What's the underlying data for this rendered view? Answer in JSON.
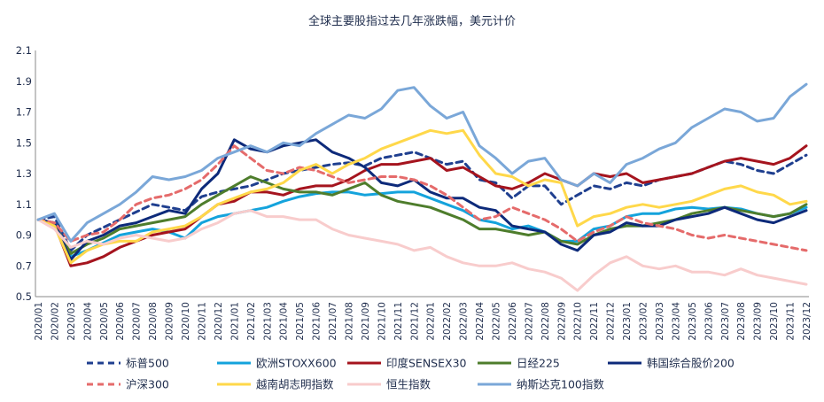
{
  "chart_data": {
    "type": "line",
    "title": "全球主要股指过去几年涨跌幅，美元计价",
    "ylim": [
      0.5,
      2.1
    ],
    "yticks": [
      "0.5",
      "0.7",
      "0.9",
      "1.1",
      "1.3",
      "1.5",
      "1.7",
      "1.9",
      "2.1"
    ],
    "ytick_values": [
      0.5,
      0.7,
      0.9,
      1.1,
      1.3,
      1.5,
      1.7,
      1.9,
      2.1
    ],
    "categories": [
      "2020/01",
      "2020/02",
      "2020/03",
      "2020/04",
      "2020/05",
      "2020/06",
      "2020/07",
      "2020/08",
      "2020/09",
      "2020/10",
      "2020/11",
      "2020/12",
      "2021/01",
      "2021/02",
      "2021/03",
      "2021/04",
      "2021/05",
      "2021/06",
      "2021/07",
      "2021/08",
      "2021/09",
      "2021/10",
      "2021/11",
      "2021/12",
      "2022/01",
      "2022/02",
      "2022/03",
      "2022/04",
      "2022/05",
      "2022/06",
      "2022/07",
      "2022/08",
      "2022/09",
      "2022/10",
      "2022/11",
      "2022/12",
      "2023/01",
      "2023/02",
      "2023/03",
      "2023/04",
      "2023/05",
      "2023/06",
      "2023/07",
      "2023/08",
      "2023/09",
      "2023/10",
      "2023/11",
      "2023/12"
    ],
    "grid": false,
    "legend_position": "bottom",
    "series": [
      {
        "name": "标普500",
        "color": "#1f3f8f",
        "dash": true,
        "values": [
          1.0,
          1.02,
          0.8,
          0.9,
          0.95,
          1.0,
          1.05,
          1.1,
          1.08,
          1.06,
          1.15,
          1.18,
          1.2,
          1.22,
          1.26,
          1.3,
          1.32,
          1.34,
          1.36,
          1.37,
          1.35,
          1.4,
          1.42,
          1.44,
          1.4,
          1.36,
          1.38,
          1.26,
          1.24,
          1.14,
          1.22,
          1.22,
          1.1,
          1.16,
          1.22,
          1.2,
          1.24,
          1.22,
          1.26,
          1.28,
          1.3,
          1.34,
          1.38,
          1.36,
          1.32,
          1.3,
          1.36,
          1.42
        ]
      },
      {
        "name": "欧洲STOXX600",
        "color": "#14a3dc",
        "dash": false,
        "values": [
          1.0,
          0.98,
          0.76,
          0.8,
          0.85,
          0.9,
          0.92,
          0.94,
          0.92,
          0.88,
          0.98,
          1.02,
          1.04,
          1.06,
          1.08,
          1.12,
          1.15,
          1.17,
          1.18,
          1.18,
          1.16,
          1.17,
          1.18,
          1.18,
          1.14,
          1.1,
          1.06,
          1.0,
          0.98,
          0.94,
          0.96,
          0.92,
          0.86,
          0.86,
          0.94,
          0.96,
          1.02,
          1.04,
          1.04,
          1.07,
          1.08,
          1.07,
          1.08,
          1.07,
          1.04,
          1.02,
          1.04,
          1.08
        ]
      },
      {
        "name": "印度SENSEX30",
        "color": "#a5141e",
        "dash": false,
        "values": [
          1.0,
          0.97,
          0.7,
          0.72,
          0.76,
          0.82,
          0.86,
          0.9,
          0.92,
          0.94,
          1.02,
          1.1,
          1.12,
          1.18,
          1.18,
          1.16,
          1.2,
          1.22,
          1.22,
          1.26,
          1.32,
          1.36,
          1.36,
          1.38,
          1.4,
          1.32,
          1.34,
          1.28,
          1.22,
          1.2,
          1.24,
          1.3,
          1.26,
          1.22,
          1.3,
          1.28,
          1.3,
          1.24,
          1.26,
          1.28,
          1.3,
          1.34,
          1.38,
          1.4,
          1.38,
          1.36,
          1.4,
          1.48
        ]
      },
      {
        "name": "日经225",
        "color": "#4e7d2c",
        "dash": false,
        "values": [
          1.0,
          0.97,
          0.78,
          0.84,
          0.88,
          0.94,
          0.96,
          0.98,
          1.0,
          1.02,
          1.1,
          1.16,
          1.22,
          1.28,
          1.24,
          1.2,
          1.18,
          1.18,
          1.16,
          1.2,
          1.24,
          1.16,
          1.12,
          1.1,
          1.08,
          1.04,
          1.0,
          0.94,
          0.94,
          0.92,
          0.9,
          0.92,
          0.86,
          0.84,
          0.9,
          0.94,
          0.96,
          0.96,
          0.98,
          1.0,
          1.04,
          1.06,
          1.08,
          1.06,
          1.04,
          1.02,
          1.04,
          1.1
        ]
      },
      {
        "name": "韩国综合股价200",
        "color": "#0d2a7a",
        "dash": false,
        "values": [
          1.0,
          0.98,
          0.74,
          0.86,
          0.9,
          0.96,
          0.98,
          1.02,
          1.06,
          1.04,
          1.2,
          1.3,
          1.52,
          1.46,
          1.44,
          1.48,
          1.5,
          1.52,
          1.44,
          1.4,
          1.34,
          1.24,
          1.22,
          1.26,
          1.18,
          1.14,
          1.14,
          1.08,
          1.06,
          0.96,
          0.94,
          0.92,
          0.84,
          0.8,
          0.9,
          0.92,
          0.98,
          0.96,
          0.96,
          1.0,
          1.02,
          1.04,
          1.08,
          1.04,
          1.0,
          0.98,
          1.02,
          1.06
        ]
      },
      {
        "name": "沪深300",
        "color": "#e56b6b",
        "dash": true,
        "values": [
          1.0,
          0.98,
          0.86,
          0.9,
          0.92,
          1.0,
          1.1,
          1.14,
          1.16,
          1.2,
          1.26,
          1.36,
          1.48,
          1.4,
          1.32,
          1.3,
          1.34,
          1.32,
          1.28,
          1.24,
          1.26,
          1.28,
          1.28,
          1.26,
          1.22,
          1.16,
          1.08,
          1.0,
          1.02,
          1.08,
          1.04,
          1.0,
          0.94,
          0.86,
          0.92,
          0.96,
          1.02,
          0.98,
          0.96,
          0.94,
          0.9,
          0.88,
          0.9,
          0.88,
          0.86,
          0.84,
          0.82,
          0.8
        ]
      },
      {
        "name": "越南胡志明指数",
        "color": "#ffd84a",
        "dash": false,
        "values": [
          1.0,
          0.96,
          0.72,
          0.8,
          0.84,
          0.86,
          0.86,
          0.92,
          0.94,
          0.96,
          1.02,
          1.1,
          1.14,
          1.18,
          1.2,
          1.24,
          1.32,
          1.36,
          1.3,
          1.36,
          1.4,
          1.46,
          1.5,
          1.54,
          1.58,
          1.56,
          1.58,
          1.42,
          1.3,
          1.28,
          1.22,
          1.26,
          1.24,
          0.96,
          1.02,
          1.04,
          1.08,
          1.1,
          1.08,
          1.1,
          1.12,
          1.16,
          1.2,
          1.22,
          1.18,
          1.16,
          1.1,
          1.12
        ]
      },
      {
        "name": "恒生指数",
        "color": "#f8cccc",
        "dash": false,
        "values": [
          1.0,
          0.94,
          0.82,
          0.86,
          0.84,
          0.88,
          0.9,
          0.88,
          0.86,
          0.88,
          0.94,
          0.98,
          1.04,
          1.06,
          1.02,
          1.02,
          1.0,
          1.0,
          0.94,
          0.9,
          0.88,
          0.86,
          0.84,
          0.8,
          0.82,
          0.76,
          0.72,
          0.7,
          0.7,
          0.72,
          0.68,
          0.66,
          0.62,
          0.54,
          0.64,
          0.72,
          0.76,
          0.7,
          0.68,
          0.7,
          0.66,
          0.66,
          0.64,
          0.68,
          0.64,
          0.62,
          0.6,
          0.58
        ]
      },
      {
        "name": "纳斯达克100指数",
        "color": "#7aa7d8",
        "dash": false,
        "values": [
          1.0,
          1.04,
          0.86,
          0.98,
          1.04,
          1.1,
          1.18,
          1.28,
          1.26,
          1.28,
          1.32,
          1.4,
          1.44,
          1.48,
          1.44,
          1.5,
          1.48,
          1.56,
          1.62,
          1.68,
          1.66,
          1.72,
          1.84,
          1.86,
          1.74,
          1.66,
          1.7,
          1.48,
          1.4,
          1.3,
          1.38,
          1.4,
          1.26,
          1.22,
          1.3,
          1.24,
          1.36,
          1.4,
          1.46,
          1.5,
          1.6,
          1.66,
          1.72,
          1.7,
          1.64,
          1.66,
          1.8,
          1.88
        ]
      }
    ]
  }
}
